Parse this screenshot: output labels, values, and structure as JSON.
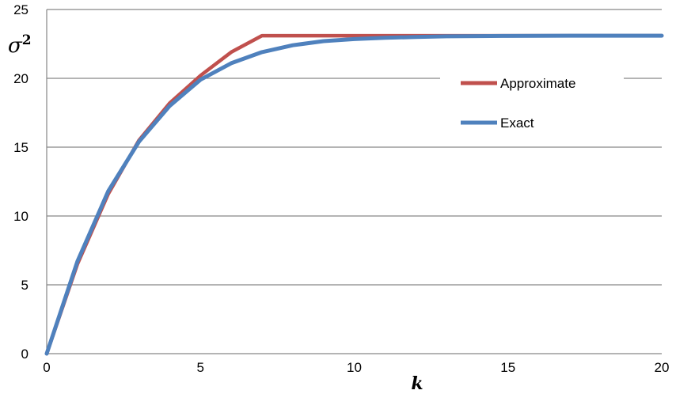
{
  "chart_data": {
    "type": "line",
    "xlabel": "k",
    "ylabel_base": "σ",
    "ylabel_sup": "2",
    "xlim": [
      0,
      20
    ],
    "ylim": [
      0,
      25
    ],
    "xticks": [
      0,
      5,
      10,
      15,
      20
    ],
    "yticks": [
      0,
      5,
      10,
      15,
      20,
      25
    ],
    "grid": "horizontal",
    "legend_position": "right",
    "series": [
      {
        "name": "Approximate",
        "color": "#C0504D",
        "x": [
          0,
          1,
          2,
          3,
          4,
          5,
          6,
          7,
          8,
          9,
          10,
          11,
          12,
          13,
          14,
          15,
          16,
          17,
          18,
          19,
          20
        ],
        "y": [
          0,
          6.5,
          11.6,
          15.5,
          18.2,
          20.2,
          21.9,
          23.1,
          23.1,
          23.1,
          23.1,
          23.1,
          23.1,
          23.1,
          23.1,
          23.1,
          23.1,
          23.1,
          23.1,
          23.1,
          23.1
        ]
      },
      {
        "name": "Exact",
        "color": "#4F81BD",
        "x": [
          0,
          1,
          2,
          3,
          4,
          5,
          6,
          7,
          8,
          9,
          10,
          11,
          12,
          13,
          14,
          15,
          16,
          17,
          18,
          19,
          20
        ],
        "y": [
          0,
          6.7,
          11.8,
          15.4,
          18.0,
          19.9,
          21.1,
          21.9,
          22.4,
          22.7,
          22.85,
          22.95,
          23.0,
          23.05,
          23.07,
          23.08,
          23.09,
          23.1,
          23.1,
          23.1,
          23.1
        ]
      }
    ]
  }
}
